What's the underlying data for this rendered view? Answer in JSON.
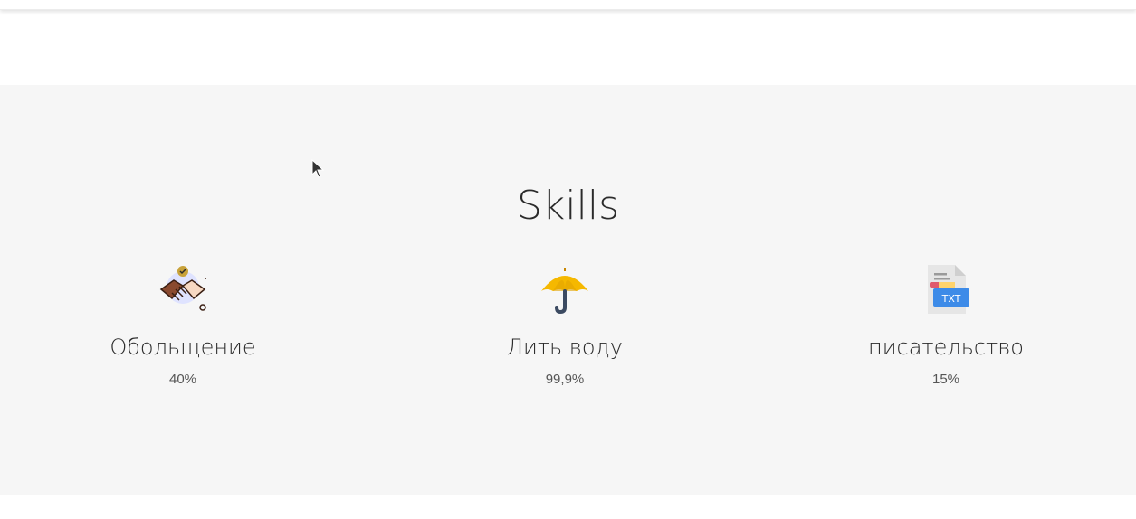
{
  "section": {
    "title": "Skills"
  },
  "skills": [
    {
      "name": "Обольщение",
      "value": "40%",
      "icon": "handshake-icon"
    },
    {
      "name": "Лить воду",
      "value": "99,9%",
      "icon": "umbrella-icon"
    },
    {
      "name": "писательство",
      "value": "15%",
      "icon": "txt-file-icon"
    }
  ],
  "colors": {
    "section_bg": "#f6f6f6",
    "text": "#2b2b2b",
    "muted": "#555555"
  }
}
